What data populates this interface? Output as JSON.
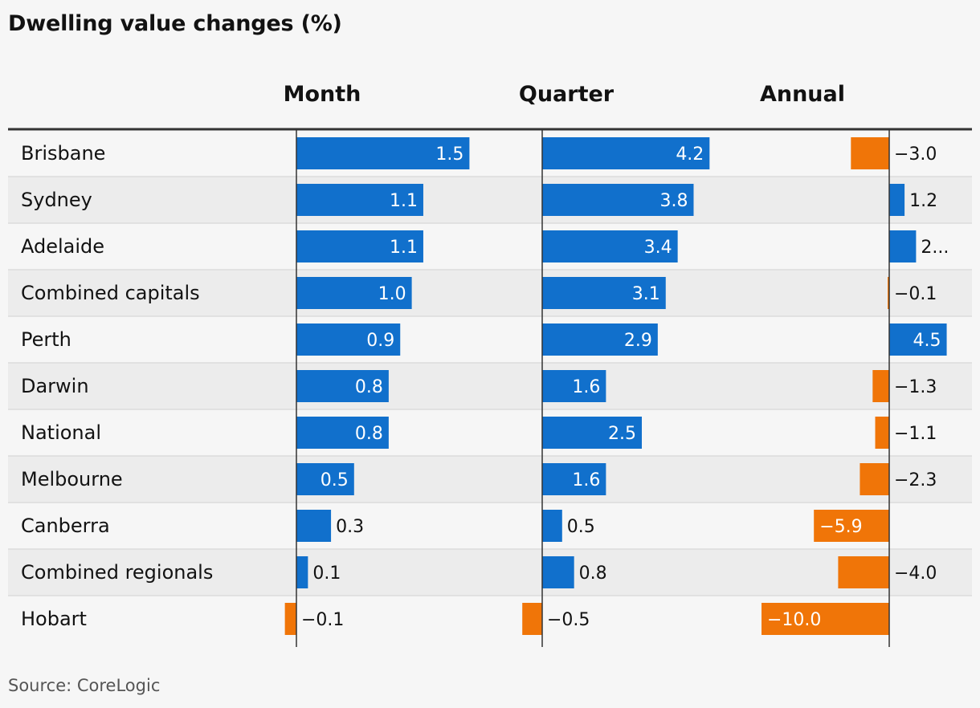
{
  "colors": {
    "positive": "#1170cc",
    "negative": "#f07508",
    "row_alt": "#ececec",
    "grid_line": "#dcdcdc",
    "header_rule": "#333333",
    "axis_line": "#333333"
  },
  "chart_data": {
    "type": "bar",
    "orientation": "horizontal",
    "title": "Dwelling value changes (%)",
    "source": "Source: CoreLogic",
    "categories": [
      "Brisbane",
      "Sydney",
      "Adelaide",
      "Combined capitals",
      "Perth",
      "Darwin",
      "National",
      "Melbourne",
      "Canberra",
      "Combined regionals",
      "Hobart"
    ],
    "series": [
      {
        "name": "Month",
        "values": [
          1.5,
          1.1,
          1.1,
          1.0,
          0.9,
          0.8,
          0.8,
          0.5,
          0.3,
          0.1,
          -0.1
        ],
        "labels": [
          "1.5",
          "1.1",
          "1.1",
          "1.0",
          "0.9",
          "0.8",
          "0.8",
          "0.5",
          "0.3",
          "0.1",
          "−0.1"
        ]
      },
      {
        "name": "Quarter",
        "values": [
          4.2,
          3.8,
          3.4,
          3.1,
          2.9,
          1.6,
          2.5,
          1.6,
          0.5,
          0.8,
          -0.5
        ],
        "labels": [
          "4.2",
          "3.8",
          "3.4",
          "3.1",
          "2.9",
          "1.6",
          "2.5",
          "1.6",
          "0.5",
          "0.8",
          "−0.5"
        ]
      },
      {
        "name": "Annual",
        "values": [
          -3.0,
          1.2,
          2.1,
          -0.1,
          4.5,
          -1.3,
          -1.1,
          -2.3,
          -5.9,
          -4.0,
          -10.0
        ],
        "labels": [
          "−3.0",
          "1.2",
          "2...",
          "−0.1",
          "4.5",
          "−1.3",
          "−1.1",
          "−2.3",
          "−5.9",
          "−4.0",
          "−10.0"
        ]
      }
    ],
    "xlim": [
      [
        -0.1,
        2.3
      ],
      [
        -0.5,
        7.0
      ],
      [
        -10.0,
        4.5
      ]
    ],
    "grid": false,
    "legend": "none"
  }
}
